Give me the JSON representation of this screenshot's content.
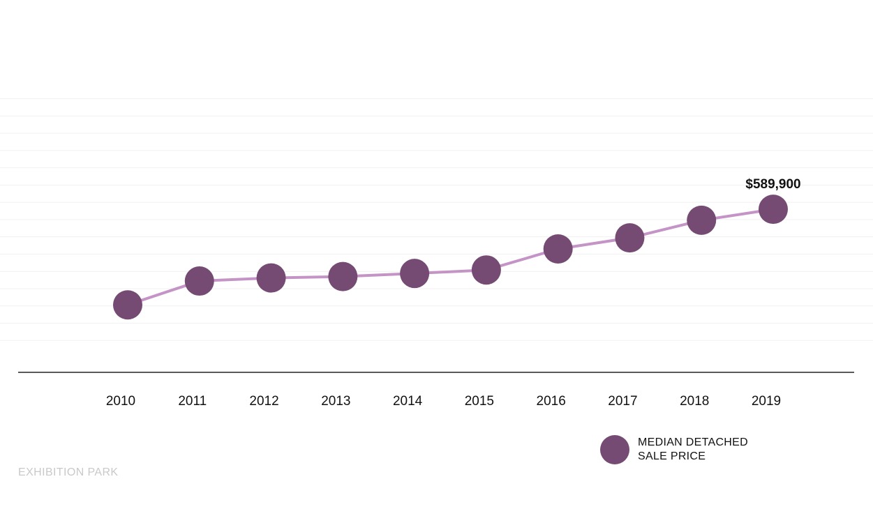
{
  "chart_data": {
    "type": "line",
    "categories": [
      "2010",
      "2011",
      "2012",
      "2013",
      "2014",
      "2015",
      "2016",
      "2017",
      "2018",
      "2019"
    ],
    "series": [
      {
        "name": "MEDIAN DETACHED SALE PRICE",
        "values": [
          313000,
          382000,
          391000,
          395000,
          404000,
          414000,
          475000,
          507000,
          558000,
          589900
        ]
      }
    ],
    "annotations": [
      {
        "index": 9,
        "text": "$589,900"
      }
    ],
    "ylim": [
      160000,
      1000000
    ],
    "grid": true,
    "legend": "bottom-right",
    "colors": {
      "line": "#c594c7",
      "marker": "#754a73",
      "grid": "#f1f1f1",
      "axis": "#222222"
    }
  },
  "legend": {
    "line1": "MEDIAN DETACHED",
    "line2": "SALE PRICE"
  },
  "source": "EXHIBITION PARK"
}
